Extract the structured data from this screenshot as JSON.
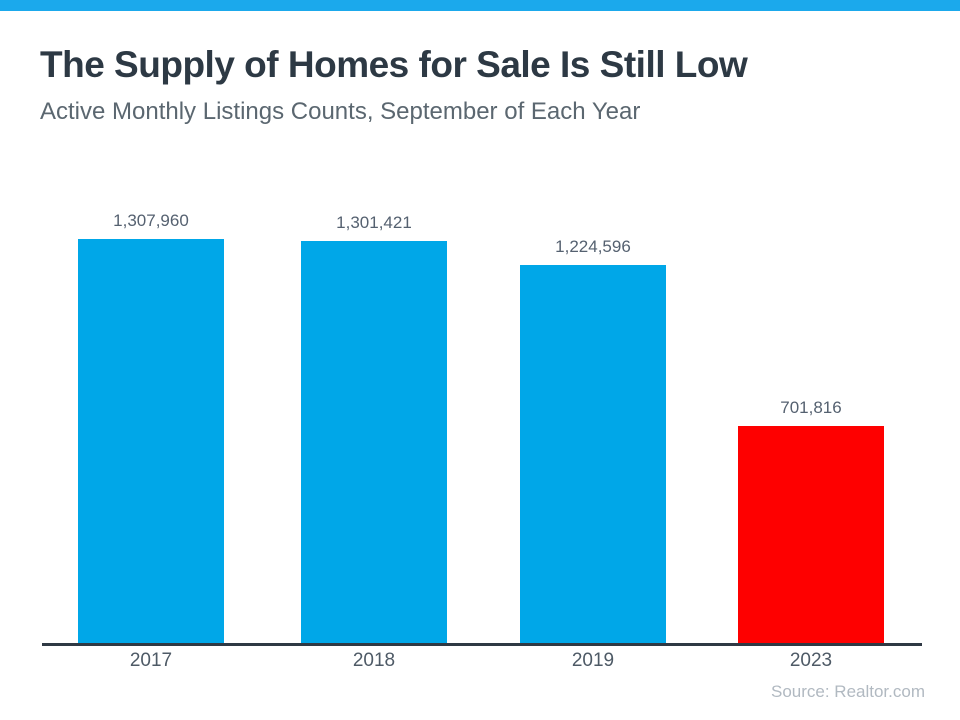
{
  "page": {
    "accent_bar_color": "#1BA9EC",
    "background_color": "#FFFFFF"
  },
  "header": {
    "title": "The Supply of Homes for Sale Is Still Low",
    "subtitle": "Active Monthly Listings Counts, September of Each Year"
  },
  "chart_data": {
    "type": "bar",
    "title": "The Supply of Homes for Sale Is Still Low",
    "subtitle": "Active Monthly Listings Counts, September of Each Year",
    "categories": [
      "2017",
      "2018",
      "2019",
      "2023"
    ],
    "values": [
      1307960,
      1301421,
      1224596,
      701816
    ],
    "value_labels": [
      "1,307,960",
      "1,301,421",
      "1,224,596",
      "701,816"
    ],
    "bar_colors": [
      "#00A7E8",
      "#00A7E8",
      "#00A7E8",
      "#FE0000"
    ],
    "xlabel": "",
    "ylabel": "",
    "ylim": [
      0,
      1400000
    ],
    "grid": false,
    "legend": false,
    "axis_line_color": "#2F3944",
    "value_label_color": "#556170",
    "tick_label_color": "#4E5A66"
  },
  "footer": {
    "source": "Source: Realtor.com"
  }
}
